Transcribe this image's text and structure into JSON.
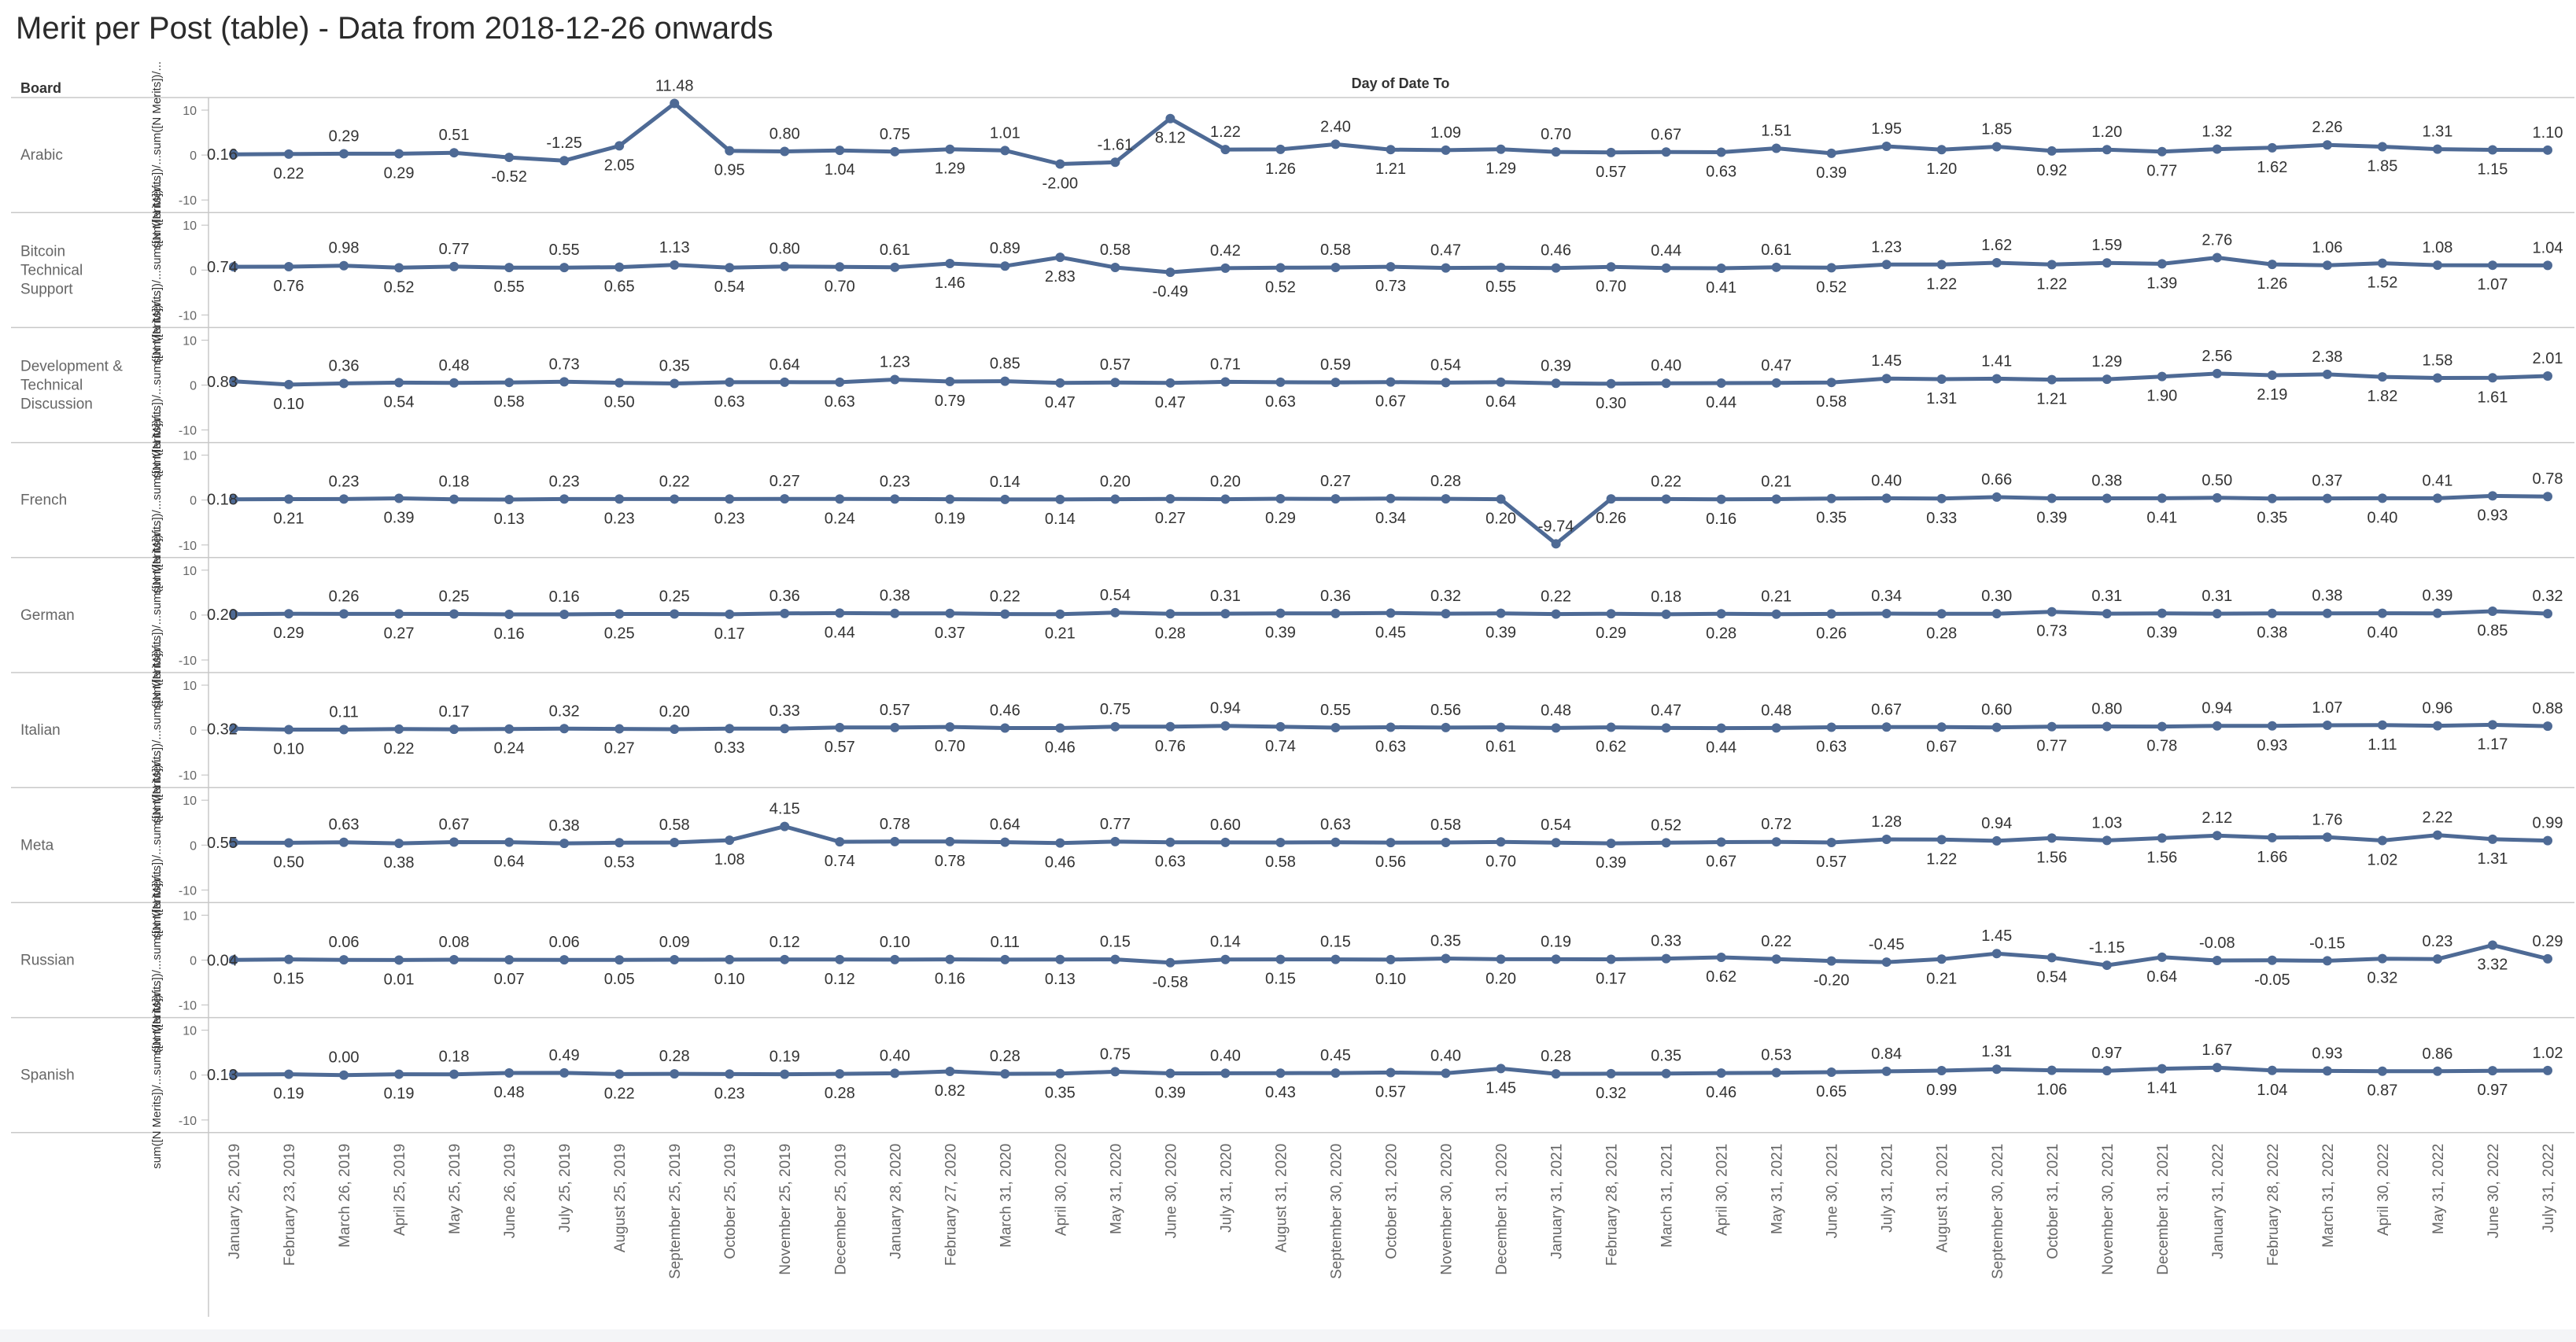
{
  "title": "Merit per Post (table) - Data from 2018-12-26 onwards",
  "chart_data": {
    "type": "line",
    "title": "Merit per Post (table) - Data from 2018-12-26 onwards",
    "row_header": "Board",
    "column_header": "Day of Date To",
    "ylabel": "sum([N Merits])/...sum([N Merits])/...",
    "ylim": [
      -10,
      10
    ],
    "yticks": [
      "10",
      "0",
      "-10"
    ],
    "line_color": "#4e6a95",
    "x": [
      "January 25, 2019",
      "February 23, 2019",
      "March 26, 2019",
      "April 25, 2019",
      "May 25, 2019",
      "June 26, 2019",
      "July 25, 2019",
      "August 25, 2019",
      "September 25, 2019",
      "October 25, 2019",
      "November 25, 2019",
      "December 25, 2019",
      "January 28, 2020",
      "February 27, 2020",
      "March 31, 2020",
      "April 30, 2020",
      "May 31, 2020",
      "June 30, 2020",
      "July 31, 2020",
      "August 31, 2020",
      "September 30, 2020",
      "October 31, 2020",
      "November 30, 2020",
      "December 31, 2020",
      "January 31, 2021",
      "February 28, 2021",
      "March 31, 2021",
      "April 30, 2021",
      "May 31, 2021",
      "June 30, 2021",
      "July 31, 2021",
      "August 31, 2021",
      "September 30, 2021",
      "October 31, 2021",
      "November 30, 2021",
      "December 31, 2021",
      "January 31, 2022",
      "February 28, 2022",
      "March 31, 2022",
      "April 30, 2022",
      "May 31, 2022",
      "June 30, 2022",
      "July 31, 2022"
    ],
    "series": [
      {
        "name": "Arabic",
        "values": [
          0.16,
          0.22,
          0.29,
          0.29,
          0.51,
          -0.52,
          -1.25,
          2.05,
          11.48,
          0.95,
          0.8,
          1.04,
          0.75,
          1.29,
          1.01,
          -2.0,
          -1.61,
          8.12,
          1.22,
          1.26,
          2.4,
          1.21,
          1.09,
          1.29,
          0.7,
          0.57,
          0.67,
          0.63,
          1.51,
          0.39,
          1.95,
          1.2,
          1.85,
          0.92,
          1.2,
          0.77,
          1.32,
          1.62,
          2.26,
          1.85,
          1.31,
          1.15,
          1.1
        ]
      },
      {
        "name": "Bitcoin Technical Support",
        "values": [
          0.74,
          0.76,
          0.98,
          0.52,
          0.77,
          0.55,
          0.55,
          0.65,
          1.13,
          0.54,
          0.8,
          0.7,
          0.61,
          1.46,
          0.89,
          2.83,
          0.58,
          -0.49,
          0.42,
          0.52,
          0.58,
          0.73,
          0.47,
          0.55,
          0.46,
          0.7,
          0.44,
          0.41,
          0.61,
          0.52,
          1.23,
          1.22,
          1.62,
          1.22,
          1.59,
          1.39,
          2.76,
          1.26,
          1.06,
          1.52,
          1.08,
          1.07,
          1.04
        ]
      },
      {
        "name": "Development & Technical Discussion",
        "values": [
          0.83,
          0.1,
          0.36,
          0.54,
          0.48,
          0.58,
          0.73,
          0.5,
          0.35,
          0.63,
          0.64,
          0.63,
          1.23,
          0.79,
          0.85,
          0.47,
          0.57,
          0.47,
          0.71,
          0.63,
          0.59,
          0.67,
          0.54,
          0.64,
          0.39,
          0.3,
          0.4,
          0.44,
          0.47,
          0.58,
          1.45,
          1.31,
          1.41,
          1.21,
          1.29,
          1.9,
          2.56,
          2.19,
          2.38,
          1.82,
          1.58,
          1.61,
          2.01
        ]
      },
      {
        "name": "French",
        "values": [
          0.18,
          0.21,
          0.23,
          0.39,
          0.18,
          0.13,
          0.23,
          0.23,
          0.22,
          0.23,
          0.27,
          0.24,
          0.23,
          0.19,
          0.14,
          0.14,
          0.2,
          0.27,
          0.2,
          0.29,
          0.27,
          0.34,
          0.28,
          0.2,
          -9.74,
          0.26,
          0.22,
          0.16,
          0.21,
          0.35,
          0.4,
          0.33,
          0.66,
          0.39,
          0.38,
          0.41,
          0.5,
          0.35,
          0.37,
          0.4,
          0.41,
          0.93,
          0.78
        ]
      },
      {
        "name": "German",
        "values": [
          0.2,
          0.29,
          0.26,
          0.27,
          0.25,
          0.16,
          0.16,
          0.25,
          0.25,
          0.17,
          0.36,
          0.44,
          0.38,
          0.37,
          0.22,
          0.21,
          0.54,
          0.28,
          0.31,
          0.39,
          0.36,
          0.45,
          0.32,
          0.39,
          0.22,
          0.29,
          0.18,
          0.28,
          0.21,
          0.26,
          0.34,
          0.28,
          0.3,
          0.73,
          0.31,
          0.39,
          0.31,
          0.38,
          0.38,
          0.4,
          0.39,
          0.85,
          0.32
        ]
      },
      {
        "name": "Italian",
        "values": [
          0.32,
          0.1,
          0.11,
          0.22,
          0.17,
          0.24,
          0.32,
          0.27,
          0.2,
          0.33,
          0.33,
          0.57,
          0.57,
          0.7,
          0.46,
          0.46,
          0.75,
          0.76,
          0.94,
          0.74,
          0.55,
          0.63,
          0.56,
          0.61,
          0.48,
          0.62,
          0.47,
          0.44,
          0.48,
          0.63,
          0.67,
          0.67,
          0.6,
          0.77,
          0.8,
          0.78,
          0.94,
          0.93,
          1.07,
          1.11,
          0.96,
          1.17,
          0.88
        ]
      },
      {
        "name": "Meta",
        "values": [
          0.55,
          0.5,
          0.63,
          0.38,
          0.67,
          0.64,
          0.38,
          0.53,
          0.58,
          1.08,
          4.15,
          0.74,
          0.78,
          0.78,
          0.64,
          0.46,
          0.77,
          0.63,
          0.6,
          0.58,
          0.63,
          0.56,
          0.58,
          0.7,
          0.54,
          0.39,
          0.52,
          0.67,
          0.72,
          0.57,
          1.28,
          1.22,
          0.94,
          1.56,
          1.03,
          1.56,
          2.12,
          1.66,
          1.76,
          1.02,
          2.22,
          1.31,
          0.99
        ]
      },
      {
        "name": "Russian",
        "values": [
          0.04,
          0.15,
          0.06,
          0.01,
          0.08,
          0.07,
          0.06,
          0.05,
          0.09,
          0.1,
          0.12,
          0.12,
          0.1,
          0.16,
          0.11,
          0.13,
          0.15,
          -0.58,
          0.14,
          0.15,
          0.15,
          0.1,
          0.35,
          0.2,
          0.19,
          0.17,
          0.33,
          0.62,
          0.22,
          -0.2,
          -0.45,
          0.21,
          1.45,
          0.54,
          -1.15,
          0.64,
          -0.08,
          -0.05,
          -0.15,
          0.32,
          0.23,
          3.32,
          0.29
        ]
      },
      {
        "name": "Spanish",
        "values": [
          0.13,
          0.19,
          0.0,
          0.19,
          0.18,
          0.48,
          0.49,
          0.22,
          0.28,
          0.23,
          0.19,
          0.28,
          0.4,
          0.82,
          0.28,
          0.35,
          0.75,
          0.39,
          0.4,
          0.43,
          0.45,
          0.57,
          0.4,
          1.45,
          0.28,
          0.32,
          0.35,
          0.46,
          0.53,
          0.65,
          0.84,
          0.99,
          1.31,
          1.06,
          0.97,
          1.41,
          1.67,
          1.04,
          0.93,
          0.87,
          0.86,
          0.97,
          1.02
        ]
      }
    ]
  }
}
